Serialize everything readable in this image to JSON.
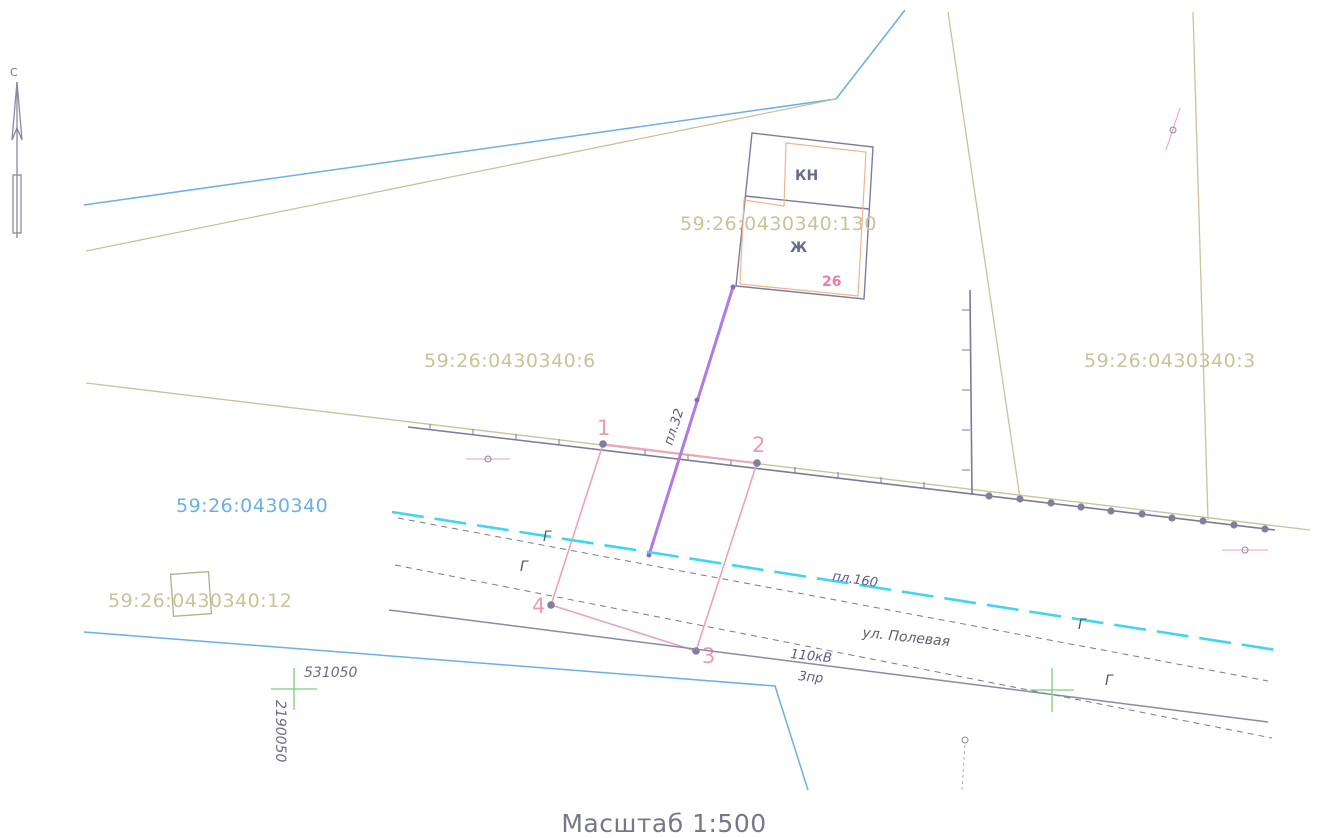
{
  "north_label": "С",
  "quarter": {
    "number": "59:26:0430340"
  },
  "parcels": {
    "p130": "59:26:0430340:130",
    "p6": "59:26:0430340:6",
    "p3": "59:26:0430340:3",
    "p12": "59:26:0430340:12"
  },
  "buildings": {
    "kn_label": "КН",
    "zh_label": "Ж",
    "house_number": "26"
  },
  "points": [
    "1",
    "2",
    "3",
    "4"
  ],
  "pipelines": {
    "branch_label": "пл.32",
    "main_label": "пл.160",
    "gas_mark": "Г"
  },
  "street": "ул. Полевая",
  "power_line": {
    "voltage": "110кВ",
    "wires": "3пр"
  },
  "grid": {
    "x": "531050",
    "y": "2190050"
  },
  "scale": "Масштаб 1:500",
  "colors": {
    "parcel_boundary": "#c9c39a",
    "quarter_boundary": "#6ab0e6",
    "new_plot": "#f2a0b8",
    "gas_pipe": "#3fd6ee",
    "fence": "#7a7a9a",
    "branch_pipe": "#b07ae8",
    "grid_cross": "#7ad07a"
  }
}
